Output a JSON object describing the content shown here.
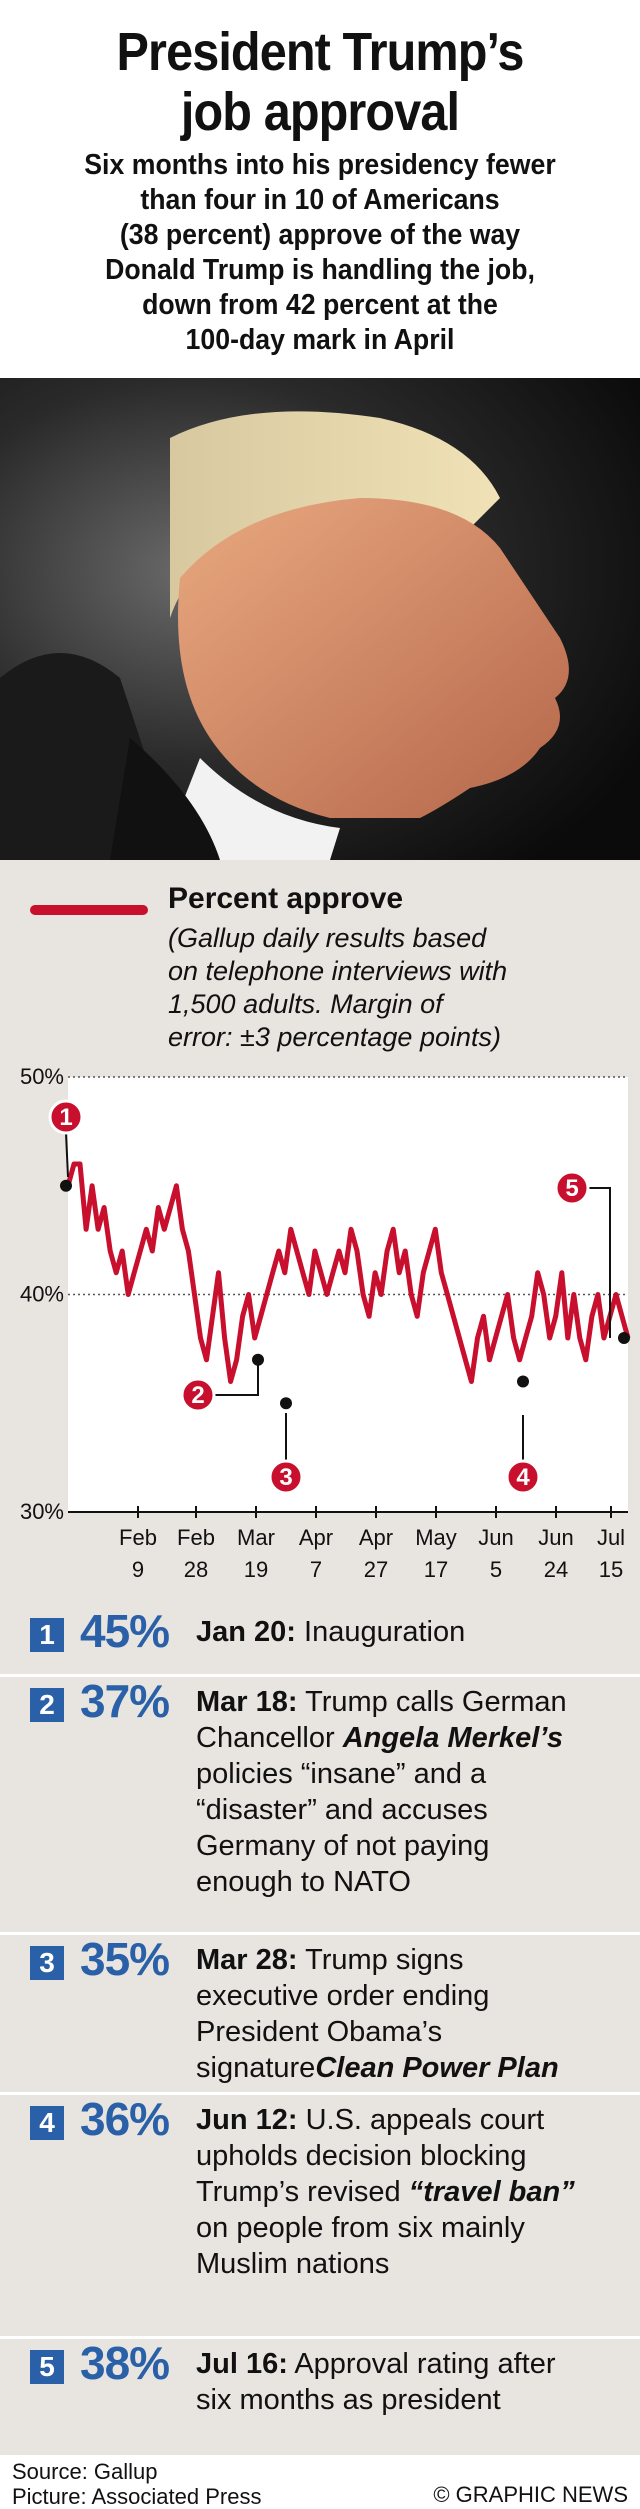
{
  "header": {
    "title_line1": "President Trump’s",
    "title_line2": "job approval",
    "subtitle_lines": [
      "Six months into his presidency fewer",
      "than four in 10 of Americans",
      "(38 percent) approve of the way",
      "Donald Trump is handling the job,",
      "down from 42 percent at the",
      "100-day mark in April"
    ]
  },
  "legend": {
    "label": "Percent approve",
    "note_lines": [
      "(Gallup daily results based",
      "on telephone interviews with",
      "1,500 adults. Margin of",
      "error: ±3 percentage points)"
    ]
  },
  "colors": {
    "line": "#c8102e",
    "accent": "#2960a8",
    "panel": "#e8e4df"
  },
  "chart_data": {
    "type": "line",
    "ylim": [
      30,
      50
    ],
    "yticks": [
      "50%",
      "40%",
      "30%"
    ],
    "xticks": [
      {
        "month": "Feb",
        "day": "9"
      },
      {
        "month": "Feb",
        "day": "28"
      },
      {
        "month": "Mar",
        "day": "19"
      },
      {
        "month": "Apr",
        "day": "7"
      },
      {
        "month": "Apr",
        "day": "27"
      },
      {
        "month": "May",
        "day": "17"
      },
      {
        "month": "Jun",
        "day": "5"
      },
      {
        "month": "Jun",
        "day": "24"
      },
      {
        "month": "Jul",
        "day": "15"
      }
    ],
    "series": [
      {
        "name": "Percent approve",
        "values": [
          45,
          46,
          46,
          43,
          45,
          43,
          44,
          42,
          41,
          42,
          40,
          41,
          42,
          43,
          42,
          44,
          43,
          44,
          45,
          43,
          42,
          40,
          38,
          37,
          39,
          41,
          38,
          36,
          37,
          39,
          40,
          38,
          39,
          40,
          41,
          42,
          41,
          43,
          42,
          41,
          40,
          42,
          41,
          40,
          41,
          42,
          41,
          43,
          42,
          40,
          39,
          41,
          40,
          42,
          43,
          41,
          42,
          40,
          39,
          41,
          42,
          43,
          41,
          40,
          39,
          38,
          37,
          36,
          38,
          39,
          37,
          38,
          39,
          40,
          38,
          37,
          38,
          39,
          41,
          40,
          38,
          39,
          41,
          38,
          40,
          38,
          37,
          39,
          40,
          38,
          39,
          40,
          39,
          38
        ]
      }
    ],
    "markers": [
      {
        "n": "1",
        "value": 45
      },
      {
        "n": "2",
        "value": 37
      },
      {
        "n": "3",
        "value": 35
      },
      {
        "n": "4",
        "value": 36
      },
      {
        "n": "5",
        "value": 38
      }
    ]
  },
  "events": [
    {
      "n": "1",
      "pct": "45%",
      "date": "Jan 20:",
      "text": [
        " Inauguration"
      ]
    },
    {
      "n": "2",
      "pct": "37%",
      "date": "Mar 18:",
      "text": [
        " Trump calls German",
        "Chancellor ",
        "Angela Merkel’s",
        "policies “insane” and a",
        "“disaster” and accuses",
        "Germany of not paying",
        "enough to NATO"
      ]
    },
    {
      "n": "3",
      "pct": "35%",
      "date": "Mar 28:",
      "text": [
        " Trump signs",
        "executive order ending",
        "President Obama’s signature",
        "Clean Power Plan"
      ]
    },
    {
      "n": "4",
      "pct": "36%",
      "date": "Jun 12:",
      "text": [
        " U.S. appeals court",
        "upholds decision blocking",
        "Trump’s revised ",
        "“travel ban”",
        "on people from six mainly",
        "Muslim nations"
      ]
    },
    {
      "n": "5",
      "pct": "38%",
      "date": "Jul 16:",
      "text": [
        " Approval rating after",
        "six months as president"
      ]
    }
  ],
  "footer": {
    "source": "Source: Gallup",
    "picture": "Picture: Associated Press",
    "credit": "© GRAPHIC NEWS"
  }
}
